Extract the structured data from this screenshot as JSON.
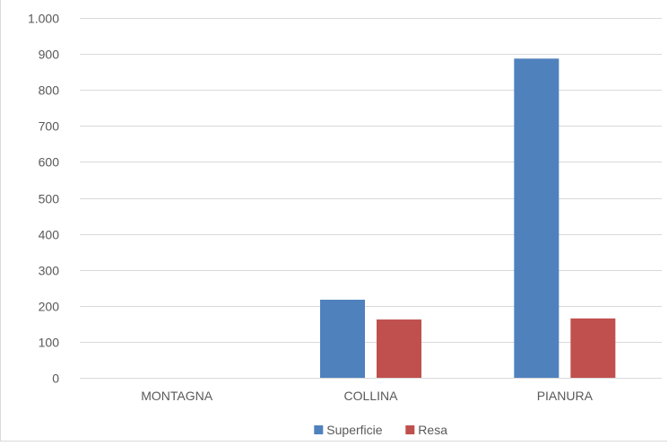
{
  "chart_data": {
    "type": "bar",
    "categories": [
      "MONTAGNA",
      "COLLINA",
      "PIANURA"
    ],
    "series": [
      {
        "name": "Superficie",
        "values": [
          0,
          217,
          887
        ],
        "color": "#4F81BD"
      },
      {
        "name": "Resa",
        "values": [
          0,
          162,
          165
        ],
        "color": "#C0504D"
      }
    ],
    "ylim": [
      0,
      1000
    ],
    "yticks": [
      0,
      100,
      200,
      300,
      400,
      500,
      600,
      700,
      800,
      900,
      1000
    ],
    "ytick_labels": [
      "0",
      "100",
      "200",
      "300",
      "400",
      "500",
      "600",
      "700",
      "800",
      "900",
      "1.000"
    ],
    "grid": true,
    "legend_position": "bottom",
    "title": "",
    "xlabel": "",
    "ylabel": ""
  }
}
